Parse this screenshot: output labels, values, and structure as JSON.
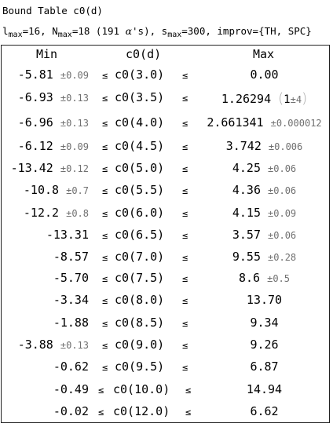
{
  "title": "Bound Table c0(d)",
  "params": {
    "l_sym": "l",
    "l_sub": "max",
    "l_val": "=16, ",
    "n_sym": "N",
    "n_sub": "max",
    "n_val": "=18 (191 ",
    "alpha": "α",
    "alpha_tail": "'s), ",
    "s_sym": "s",
    "s_sub": "max",
    "s_val": "=300, improv={TH, SPC}"
  },
  "headers": {
    "min": "Min",
    "mid": "c0(d)",
    "max": "Max"
  },
  "le_symbol": "≤",
  "rows": [
    {
      "min": "-5.81",
      "min_err": "±0.09",
      "arg": "c0(3.0)",
      "max": "0.00",
      "max_err": ""
    },
    {
      "min": "-6.93",
      "min_err": "±0.13",
      "arg": "c0(3.5)",
      "max": "1.26294",
      "max_paren": true,
      "paren_inner": "1",
      "paren_err": "±4"
    },
    {
      "min": "-6.96",
      "min_err": "±0.13",
      "arg": "c0(4.0)",
      "max": "2.661341",
      "max_err": "±0.000012"
    },
    {
      "min": "-6.12",
      "min_err": "±0.09",
      "arg": "c0(4.5)",
      "max": "3.742",
      "max_err": "±0.006"
    },
    {
      "min": "-13.42",
      "min_err": "±0.12",
      "arg": "c0(5.0)",
      "max": "4.25",
      "max_err": "±0.06"
    },
    {
      "min": "-10.8",
      "min_err": "±0.7",
      "arg": "c0(5.5)",
      "max": "4.36",
      "max_err": "±0.06"
    },
    {
      "min": "-12.2",
      "min_err": "±0.8",
      "arg": "c0(6.0)",
      "max": "4.15",
      "max_err": "±0.09"
    },
    {
      "min": "-13.31",
      "min_err": "",
      "arg": "c0(6.5)",
      "max": "3.57",
      "max_err": "±0.06"
    },
    {
      "min": "-8.57",
      "min_err": "",
      "arg": "c0(7.0)",
      "max": "9.55",
      "max_err": "±0.28"
    },
    {
      "min": "-5.70",
      "min_err": "",
      "arg": "c0(7.5)",
      "max": "8.6",
      "max_err": "±0.5"
    },
    {
      "min": "-3.34",
      "min_err": "",
      "arg": "c0(8.0)",
      "max": "13.70",
      "max_err": ""
    },
    {
      "min": "-1.88",
      "min_err": "",
      "arg": "c0(8.5)",
      "max": "9.34",
      "max_err": ""
    },
    {
      "min": "-3.88",
      "min_err": "±0.13",
      "arg": "c0(9.0)",
      "max": "9.26",
      "max_err": ""
    },
    {
      "min": "-0.62",
      "min_err": "",
      "arg": "c0(9.5)",
      "max": "6.87",
      "max_err": ""
    },
    {
      "min": "-0.49",
      "min_err": "",
      "arg": "c0(10.0)",
      "max": "14.94",
      "max_err": ""
    },
    {
      "min": "-0.02",
      "min_err": "",
      "arg": "c0(12.0)",
      "max": "6.62",
      "max_err": ""
    }
  ]
}
